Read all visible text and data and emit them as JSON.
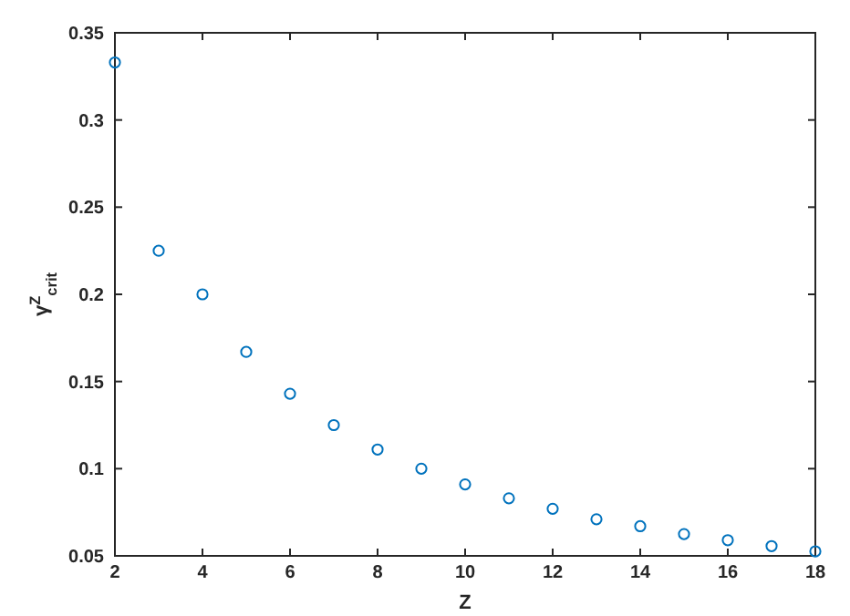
{
  "chart_data": {
    "type": "scatter",
    "xlabel": "Z",
    "ylabel": "γ$^{Z}$$_{crit}$",
    "marker": "circle",
    "x": [
      2,
      3,
      4,
      5,
      6,
      7,
      8,
      9,
      10,
      11,
      12,
      13,
      14,
      15,
      16,
      17,
      18
    ],
    "series": [
      {
        "color": "#0072bd",
        "values": [
          0.333,
          0.225,
          0.2,
          0.167,
          0.143,
          0.125,
          0.111,
          0.1,
          0.091,
          0.083,
          0.077,
          0.071,
          0.067,
          0.0625,
          0.059,
          0.0556,
          0.0526
        ]
      }
    ],
    "xlim": [
      2,
      18
    ],
    "xticks": [
      2,
      4,
      6,
      8,
      10,
      12,
      14,
      16,
      18
    ],
    "ylim": [
      0.05,
      0.35
    ],
    "yticks": [
      0.05,
      0.1,
      0.15,
      0.2,
      0.25,
      0.3,
      0.35
    ]
  }
}
